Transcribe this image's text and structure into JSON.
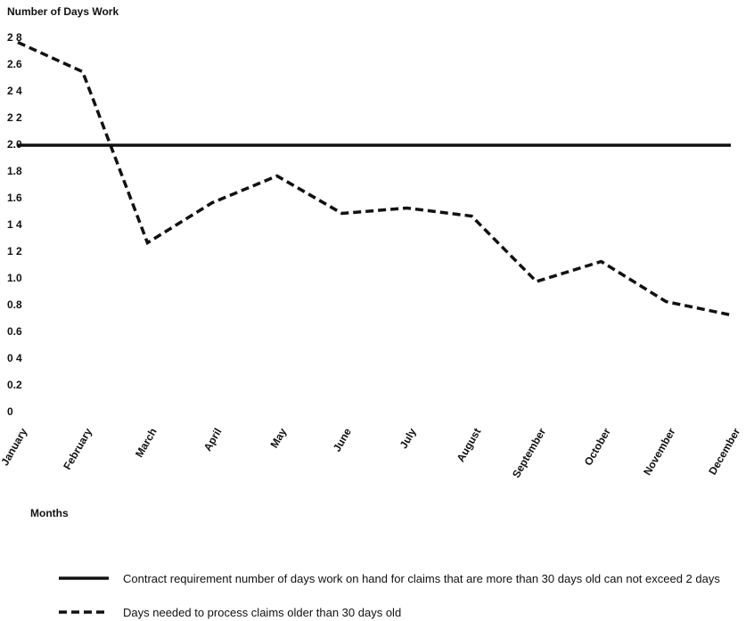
{
  "chart_data": {
    "type": "line",
    "title": "Number of Days Work",
    "x_label": "Months",
    "categories": [
      "January",
      "February",
      "March",
      "April",
      "May",
      "June",
      "July",
      "August",
      "September",
      "October",
      "November",
      "December"
    ],
    "series": [
      {
        "name": "Contract requirement  number of days work on hand for claims that are more than 30 days old can not exceed 2 days",
        "color": "#111111",
        "dash": "solid",
        "values": [
          2.0,
          2.0,
          2.0,
          2.0,
          2.0,
          2.0,
          2.0,
          2.0,
          2.0,
          2.0,
          2.0,
          2.0
        ]
      },
      {
        "name": "Days needed to process claims older than 30 days old",
        "color": "#111111",
        "dash": "dashed",
        "values": [
          2.77,
          2.55,
          1.27,
          1.57,
          1.77,
          1.49,
          1.53,
          1.47,
          0.98,
          1.13,
          0.83,
          0.73
        ]
      }
    ],
    "ylim": [
      0,
      2.8
    ],
    "yticks": [
      0,
      0.2,
      {
        "value": 0.4,
        "label": "0 4"
      },
      0.6,
      0.8,
      {
        "value": 1.0,
        "label": "1.0"
      },
      {
        "value": 1.2,
        "label": "1 2"
      },
      {
        "value": 1.4,
        "label": "1 4"
      },
      1.6,
      1.8,
      {
        "value": 2.0,
        "label": "2.0"
      },
      {
        "value": 2.2,
        "label": "2 2"
      },
      {
        "value": 2.4,
        "label": "2 4"
      },
      2.6,
      {
        "value": 2.8,
        "label": "2 8"
      }
    ],
    "grid": false
  }
}
